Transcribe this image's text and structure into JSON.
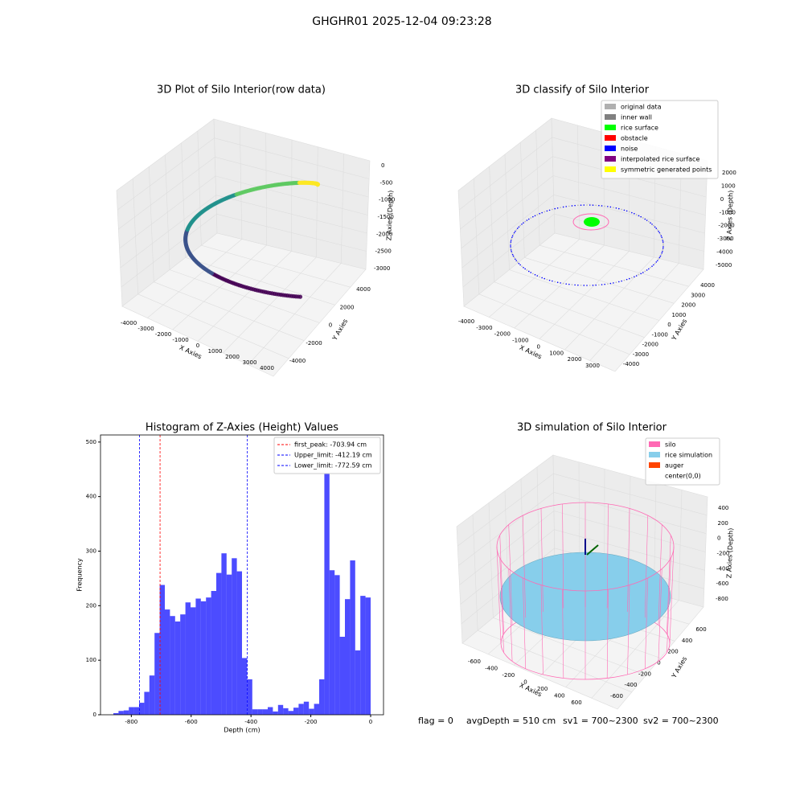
{
  "title": "GHGHR01 2025-12-04 09:23:28",
  "footer": {
    "flag": "flag = 0",
    "avg_depth": "avgDepth = 510 cm",
    "sv1": "sv1 = 700~2300",
    "sv2": "sv2 = 700~2300"
  },
  "panels": [
    {
      "title": "3D Plot of Silo Interior(row data)",
      "xlabel": "X Axies",
      "ylabel": "Y Axies",
      "zlabel": "Z Axies (Depth)",
      "xticks": [
        -4000,
        -3000,
        -2000,
        -1000,
        0,
        1000,
        2000,
        3000,
        4000
      ],
      "yticks": [
        -4000,
        -2000,
        0,
        2000,
        4000
      ],
      "zticks": [
        0,
        -500,
        -1000,
        -1500,
        -2000,
        -2500,
        -3000
      ]
    },
    {
      "title": "3D classify of Silo Interior",
      "xlabel": "X Axies",
      "ylabel": "Y Axies",
      "zlabel": "Z Axies (Depth)",
      "xticks": [
        -4000,
        -3000,
        -2000,
        -1000,
        0,
        1000,
        2000,
        3000
      ],
      "yticks": [
        -4000,
        -3000,
        -2000,
        -1000,
        0,
        1000,
        2000,
        3000,
        4000
      ],
      "zticks": [
        2000,
        1000,
        0,
        -1000,
        -2000,
        -3000,
        -4000,
        -5000
      ],
      "legend": [
        {
          "name": "original data",
          "color": "#b0b0b0"
        },
        {
          "name": "inner wall",
          "color": "#808080"
        },
        {
          "name": "rice surface",
          "color": "#00ff00"
        },
        {
          "name": "obstacle",
          "color": "#ff0000"
        },
        {
          "name": "noise",
          "color": "#0000ff"
        },
        {
          "name": "interpolated rice surface",
          "color": "#800080"
        },
        {
          "name": "symmetric generated points",
          "color": "#ffff00"
        }
      ]
    },
    {
      "title": "3D simulation of Silo Interior",
      "xlabel": "X Axies",
      "ylabel": "Y Axies",
      "zlabel": "Z Axies (Depth)",
      "xticks": [
        -600,
        -400,
        -200,
        0,
        200,
        400,
        600
      ],
      "yticks": [
        -600,
        -400,
        -200,
        0,
        200,
        400,
        600
      ],
      "zticks": [
        400,
        200,
        0,
        -200,
        -400,
        -600,
        -800
      ],
      "legend": [
        {
          "name": "silo",
          "color": "#ff69b4"
        },
        {
          "name": "rice simulation",
          "color": "#87ceeb"
        },
        {
          "name": "auger",
          "color": "#ff4500"
        },
        {
          "name": "center(0,0)",
          "color": "none"
        }
      ]
    }
  ],
  "chart_data": {
    "type": "histogram",
    "title": "Histogram of Z-Axies (Height) Values",
    "xlabel": "Depth (cm)",
    "ylabel": "Frequency",
    "color": "#0000ff",
    "bins": [
      -860,
      -842.8,
      -825.6,
      -808.4,
      -791.2,
      -774,
      -756.8,
      -739.6,
      -722.4,
      -705.2,
      -688,
      -670.8,
      -653.6,
      -636.4,
      -619.2,
      -602,
      -584.8,
      -567.6,
      -550.4,
      -533.2,
      -516,
      -498.8,
      -481.6,
      -464.4,
      -447.2,
      -430,
      -412.8,
      -395.6,
      -378.4,
      -361.2,
      -344,
      -326.8,
      -309.6,
      -292.4,
      -275.2,
      -258,
      -240.8,
      -223.6,
      -206.4,
      -189.2,
      -172,
      -154.8,
      -137.6,
      -120.4,
      -103.2,
      -86,
      -68.8,
      -51.6,
      -34.4,
      -17.2,
      0
    ],
    "values": [
      3,
      7,
      8,
      14,
      14,
      22,
      42,
      72,
      150,
      238,
      193,
      181,
      171,
      184,
      206,
      197,
      213,
      208,
      215,
      227,
      260,
      296,
      257,
      287,
      263,
      104,
      65,
      10,
      10,
      10,
      14,
      6,
      18,
      12,
      7,
      13,
      20,
      24,
      11,
      20,
      65,
      480,
      265,
      256,
      143,
      212,
      283,
      118,
      218,
      215
    ],
    "vlines": [
      {
        "name": "first_peak: -703.94 cm",
        "value": -703.94,
        "color": "#ff0000"
      },
      {
        "name": "Upper_limit: -412.19 cm",
        "value": -412.19,
        "color": "#0000ff"
      },
      {
        "name": "Lower_limit: -772.59 cm",
        "value": -772.59,
        "color": "#0000ff"
      }
    ],
    "xlim": [
      -903,
      43
    ],
    "ylim": [
      0,
      513
    ],
    "xticks": [
      -800,
      -600,
      -400,
      -200,
      0
    ],
    "yticks": [
      0,
      100,
      200,
      300,
      400,
      500
    ],
    "legend": "upper right"
  }
}
